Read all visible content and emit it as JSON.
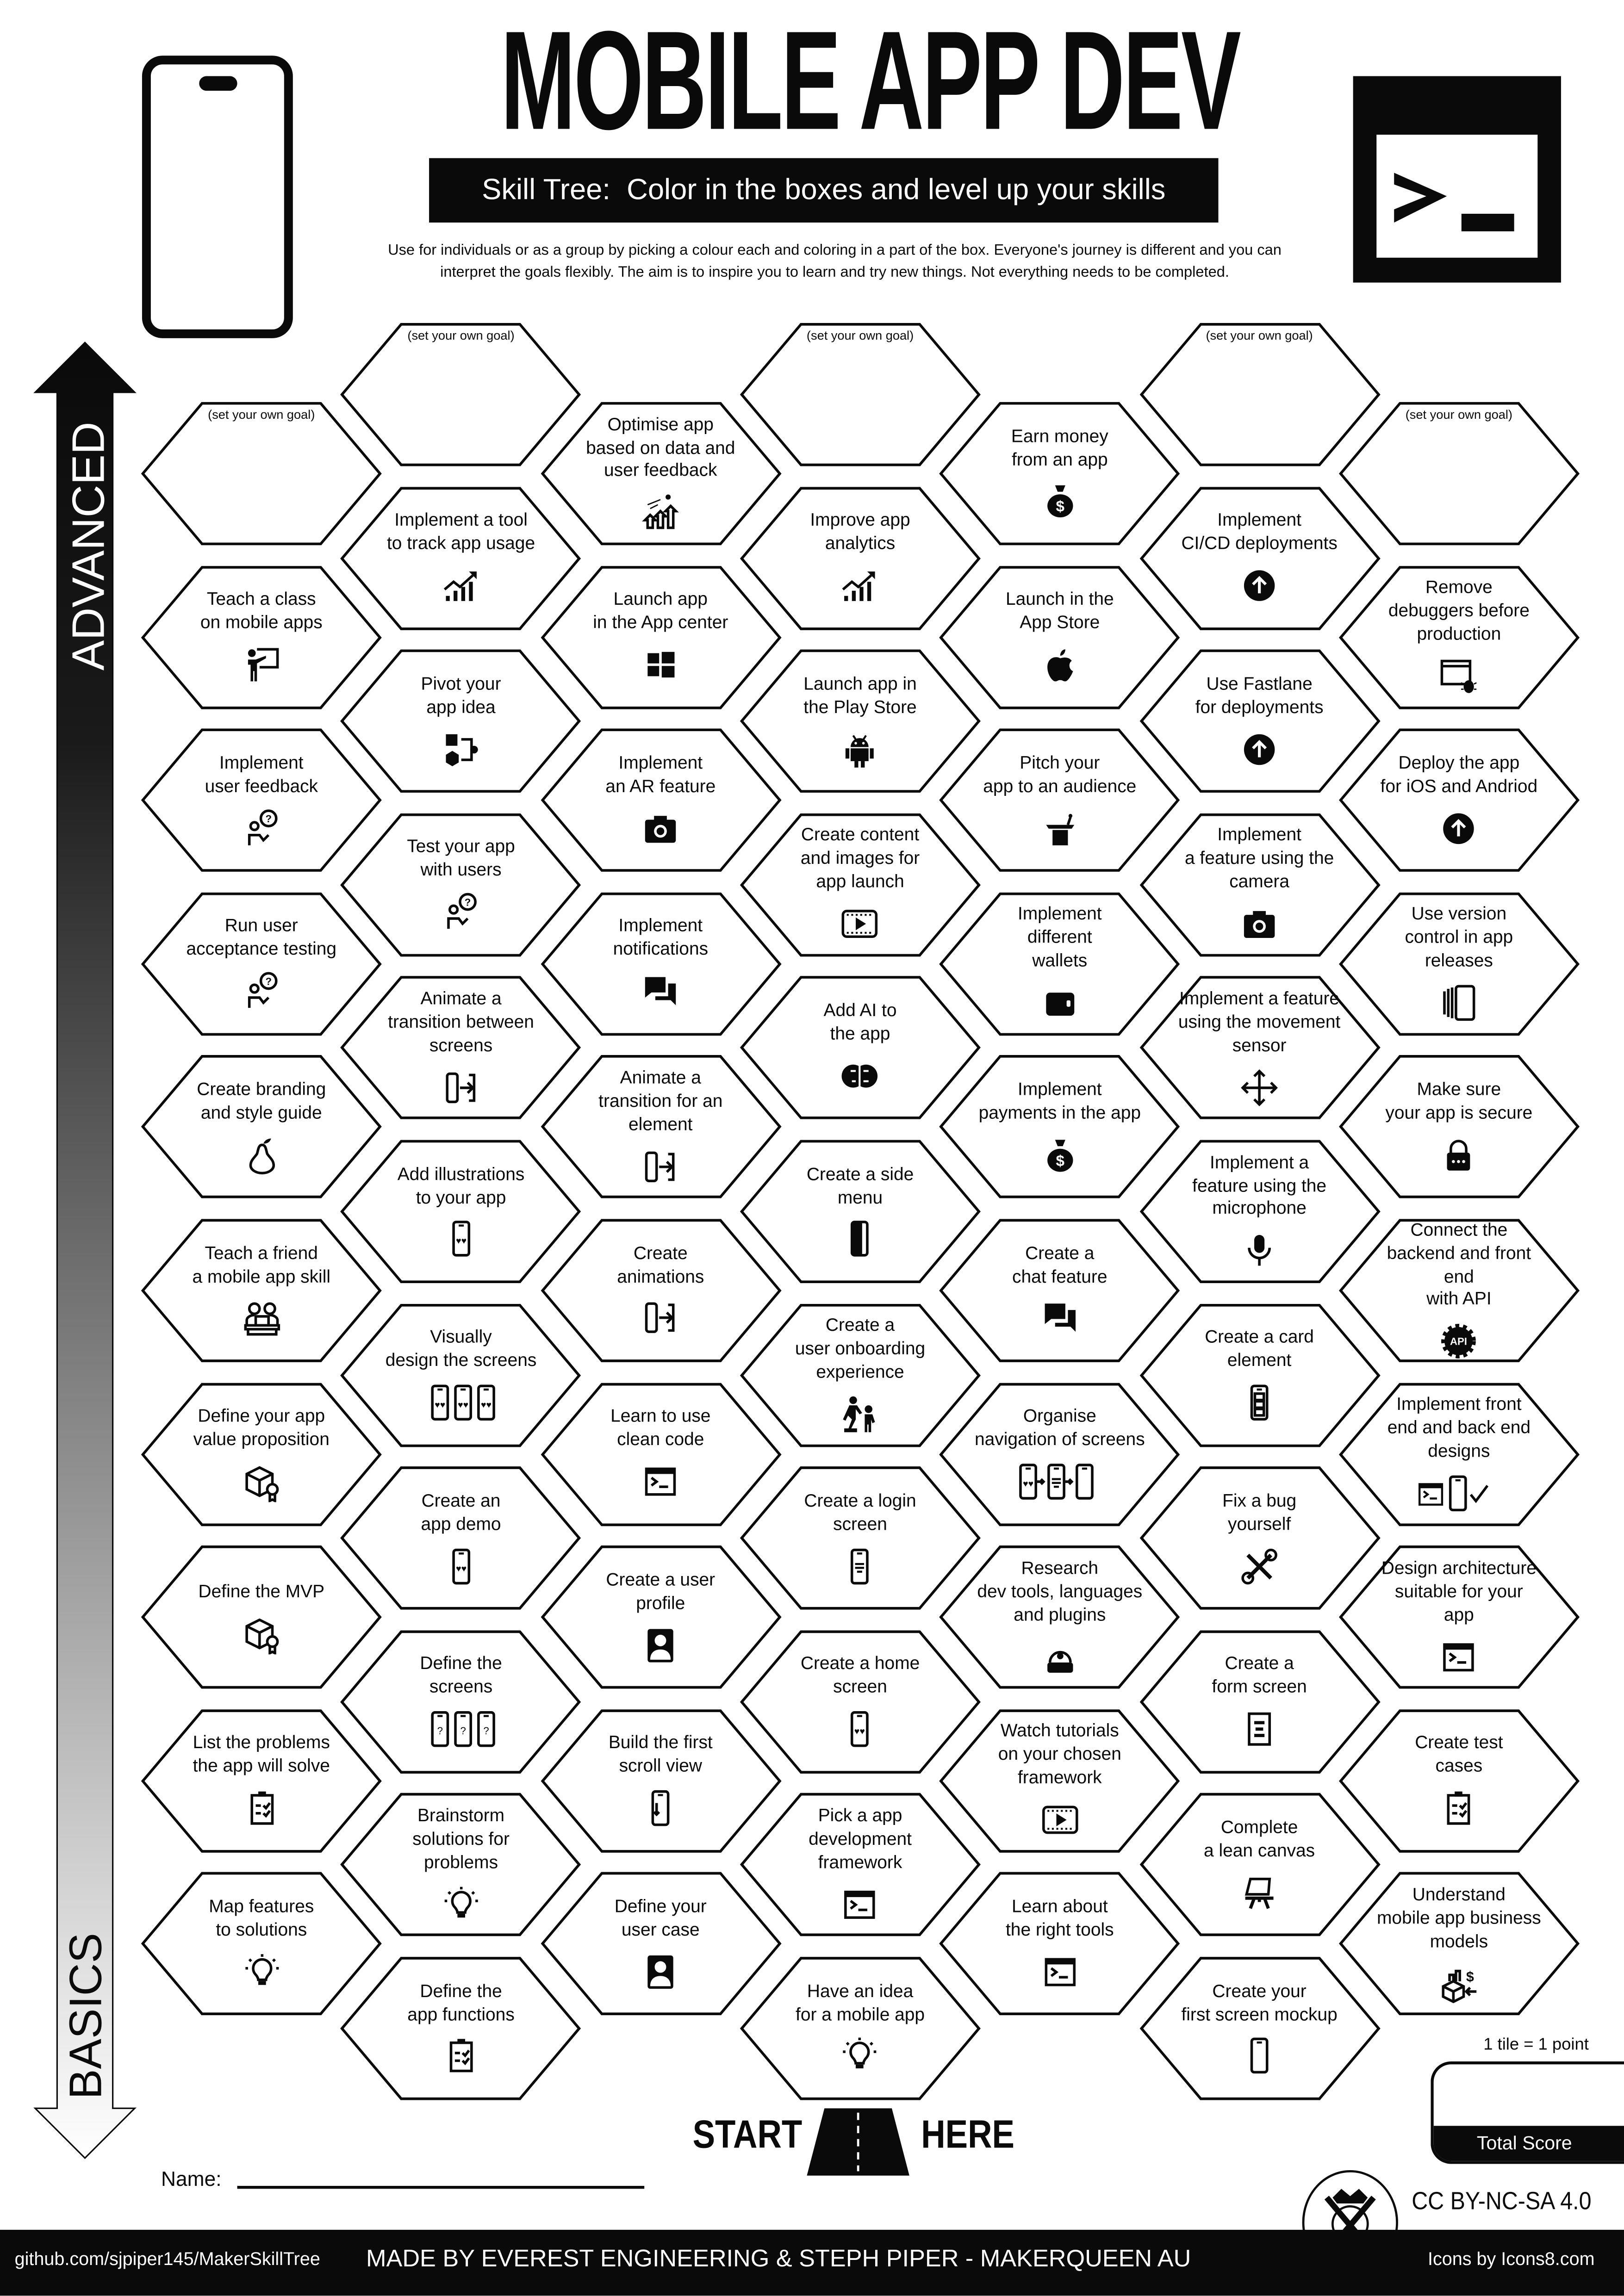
{
  "header": {
    "title": "MOBILE APP DEV",
    "subtitle": "Skill Tree:  Color in the boxes and level up your skills",
    "description_line1": "Use for individuals or as a group by picking a colour each and coloring in a part of the box.  Everyone's journey is different and you can",
    "description_line2": "interpret the goals flexibly.  The aim is to inspire you to learn and try new things. Not everything needs to be completed.",
    "left_logo_icon": "smartphone-icon",
    "right_logo_icon": "terminal-icon"
  },
  "progress_arrow": {
    "top_label": "ADVANCED",
    "bottom_label": "BASICS"
  },
  "skill_tree": {
    "columns": [
      [
        {
          "label": "(set your own goal)",
          "goal": true
        },
        {
          "label": "Teach a class\non mobile apps",
          "icon": "teacher"
        },
        {
          "label": "Implement\nuser feedback",
          "icon": "person-question"
        },
        {
          "label": "Run user\nacceptance testing",
          "icon": "person-question"
        },
        {
          "label": "Create branding\nand style guide",
          "icon": "pear"
        },
        {
          "label": "Teach a friend\na mobile app skill",
          "icon": "people-laptop"
        },
        {
          "label": "Define your app\nvalue proposition",
          "icon": "box-award"
        },
        {
          "label": "Define the MVP",
          "icon": "box-award"
        },
        {
          "label": "List the problems\nthe app will solve",
          "icon": "clipboard"
        },
        {
          "label": "Map features\nto solutions",
          "icon": "lightbulb"
        }
      ],
      [
        {
          "label": "(set your own goal)",
          "goal": true
        },
        {
          "label": "Implement a tool\nto track app usage",
          "icon": "chart-up"
        },
        {
          "label": "Pivot your\napp idea",
          "icon": "pivot"
        },
        {
          "label": "Test your app\nwith users",
          "icon": "person-question"
        },
        {
          "label": "Animate a\ntransition between\nscreens",
          "icon": "transition"
        },
        {
          "label": "Add illustrations\nto your app",
          "icon": "phone-hearts"
        },
        {
          "label": "Visually\ndesign the screens",
          "icon": "three-phones-hearts"
        },
        {
          "label": "Create an\napp demo",
          "icon": "phone-hearts"
        },
        {
          "label": "Define the\nscreens",
          "icon": "three-phones-question"
        },
        {
          "label": "Brainstorm\nsolutions for\nproblems",
          "icon": "lightbulb"
        },
        {
          "label": "Define the\napp functions",
          "icon": "clipboard"
        }
      ],
      [
        {
          "label": "Optimise app\nbased on data and\nuser feedback",
          "icon": "optimise"
        },
        {
          "label": "Launch app\nin the App center",
          "icon": "windows"
        },
        {
          "label": "Implement\nan AR feature",
          "icon": "camera"
        },
        {
          "label": "Implement\nnotifications",
          "icon": "chat"
        },
        {
          "label": "Animate a\ntransition for an\nelement",
          "icon": "transition"
        },
        {
          "label": "Create\nanimations",
          "icon": "transition"
        },
        {
          "label": "Learn to use\nclean code",
          "icon": "terminal"
        },
        {
          "label": "Create a user\nprofile",
          "icon": "user-profile"
        },
        {
          "label": "Build the first\nscroll view",
          "icon": "phone-scroll"
        },
        {
          "label": "Define your\nuser case",
          "icon": "user-profile"
        }
      ],
      [
        {
          "label": "(set your own goal)",
          "goal": true
        },
        {
          "label": "Improve app\nanalytics",
          "icon": "chart-up"
        },
        {
          "label": "Launch app in\nthe Play Store",
          "icon": "android"
        },
        {
          "label": "Create content\nand images for\napp launch",
          "icon": "film"
        },
        {
          "label": "Add AI to\nthe app",
          "icon": "brain"
        },
        {
          "label": "Create a side\nmenu",
          "icon": "phone-side"
        },
        {
          "label": "Create a\nuser onboarding\nexperience",
          "icon": "onboarding"
        },
        {
          "label": "Create a login\nscreen",
          "icon": "phone-list"
        },
        {
          "label": "Create a home\nscreen",
          "icon": "phone-hearts"
        },
        {
          "label": "Pick a app\ndevelopment\nframework",
          "icon": "terminal"
        },
        {
          "label": "Have an idea\nfor a mobile app",
          "icon": "lightbulb"
        }
      ],
      [
        {
          "label": "Earn money\nfrom an app",
          "icon": "money-bag"
        },
        {
          "label": "Launch in the\nApp Store",
          "icon": "apple"
        },
        {
          "label": "Pitch your\napp to an audience",
          "icon": "podium"
        },
        {
          "label": "Implement\ndifferent\nwallets",
          "icon": "wallet"
        },
        {
          "label": "Implement\npayments in the app",
          "icon": "money-bag"
        },
        {
          "label": "Create a\nchat feature",
          "icon": "chat"
        },
        {
          "label": "Organise\nnavigation of screens",
          "icon": "navigation-screens"
        },
        {
          "label": "Research\ndev tools, languages\nand plugins",
          "icon": "helmet"
        },
        {
          "label": "Watch tutorials\non your chosen\nframework",
          "icon": "film"
        },
        {
          "label": "Learn about\nthe right tools",
          "icon": "terminal"
        }
      ],
      [
        {
          "label": "(set your own goal)",
          "goal": true
        },
        {
          "label": "Implement\nCI/CD deployments",
          "icon": "arrow-up-circle"
        },
        {
          "label": "Use Fastlane\nfor deployments",
          "icon": "arrow-up-circle"
        },
        {
          "label": "Implement\na feature using the\ncamera",
          "icon": "camera"
        },
        {
          "label": "Implement a feature\nusing the movement\nsensor",
          "icon": "move"
        },
        {
          "label": "Implement a\nfeature using the\nmicrophone",
          "icon": "microphone"
        },
        {
          "label": "Create a card\nelement",
          "icon": "phone-cards"
        },
        {
          "label": "Fix a bug\nyourself",
          "icon": "tools"
        },
        {
          "label": "Create a\nform screen",
          "icon": "form"
        },
        {
          "label": "Complete\na lean canvas",
          "icon": "easel"
        },
        {
          "label": "Create your\nfirst screen mockup",
          "icon": "phone"
        }
      ],
      [
        {
          "label": "(set your own goal)",
          "goal": true
        },
        {
          "label": "Remove\ndebuggers before\nproduction",
          "icon": "bug-window"
        },
        {
          "label": "Deploy the app\nfor iOS and Andriod",
          "icon": "arrow-up-circle"
        },
        {
          "label": "Use version\ncontrol in app releases",
          "icon": "version"
        },
        {
          "label": "Make sure\nyour app is secure",
          "icon": "lock"
        },
        {
          "label": "Connect the\nbackend and front end\nwith API",
          "icon": "api"
        },
        {
          "label": "Implement front\nend and back end\ndesigns",
          "icon": "frontend-backend"
        },
        {
          "label": "Design architecture\nsuitable for your\napp",
          "icon": "terminal"
        },
        {
          "label": "Create test\ncases",
          "icon": "clipboard"
        },
        {
          "label": "Understand\nmobile app business\nmodels",
          "icon": "business"
        }
      ]
    ]
  },
  "start": {
    "left": "START",
    "right": "HERE",
    "icon": "road-icon"
  },
  "name_label": "Name:",
  "score": {
    "note": "1 tile = 1 point",
    "label": "Total Score"
  },
  "license": "CC BY-NC-SA 4.0",
  "footer": {
    "github": "github.com/sjpiper145/MakerSkillTree",
    "made_by": "MADE BY EVEREST ENGINEERING & STEPH PIPER  -  MAKERQUEEN AU",
    "icons_credit": "Icons by Icons8.com"
  },
  "colors": {
    "ink": "#0a0a0a",
    "paper": "#ffffff"
  }
}
